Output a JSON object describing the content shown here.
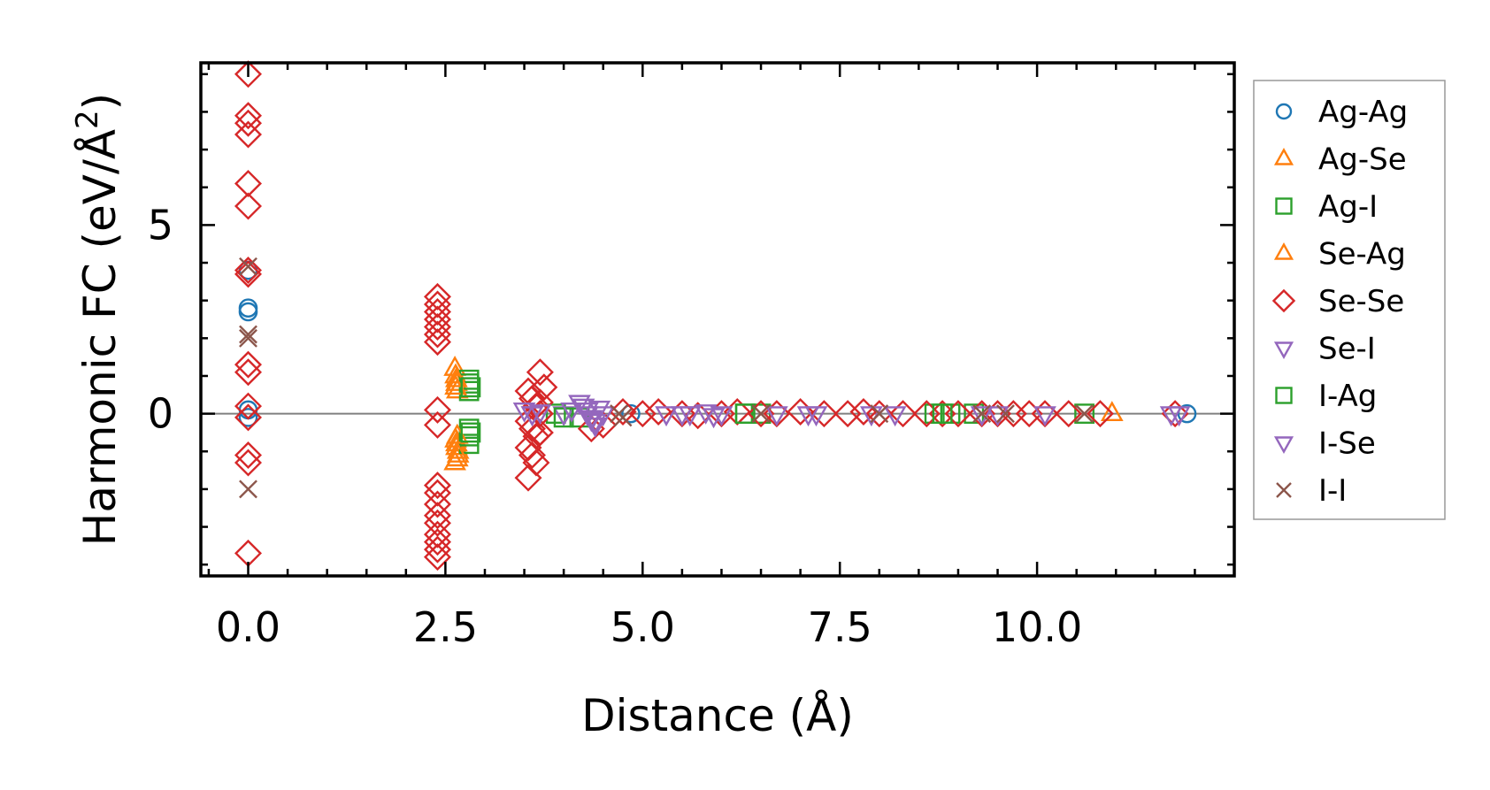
{
  "chart_data": {
    "type": "scatter",
    "title": "",
    "xlabel": "Distance (Å)",
    "ylabel_main": "Harmonic FC (eV/Å",
    "ylabel_sup": "2",
    "ylabel_end": ")",
    "xlim": [
      -0.6,
      12.5
    ],
    "ylim": [
      -4.3,
      9.3
    ],
    "xticks": [
      0.0,
      2.5,
      5.0,
      7.5,
      10.0
    ],
    "xtick_labels": [
      "0.0",
      "2.5",
      "5.0",
      "7.5",
      "10.0"
    ],
    "yticks": [
      0,
      5
    ],
    "ytick_labels": [
      "0",
      "5"
    ],
    "x_minor_step": 0.5,
    "y_minor_step": 1,
    "zero_line": true,
    "legend_position": "outside-right",
    "series": [
      {
        "name": "Ag-Ag",
        "marker": "circle",
        "color": "#1f77b4",
        "x": [
          0,
          0,
          0,
          0,
          0,
          4.85,
          11.9
        ],
        "y": [
          3.8,
          2.8,
          2.7,
          0.1,
          -0.1,
          0.0,
          0.0
        ]
      },
      {
        "name": "Ag-Se",
        "marker": "triangle-up",
        "color": "#ff7f0e",
        "x": [
          2.62,
          2.63,
          2.64,
          2.65,
          2.63,
          2.64,
          2.66,
          2.65,
          2.62,
          2.64,
          10.95
        ],
        "y": [
          1.2,
          1.0,
          0.8,
          0.6,
          -0.7,
          -0.9,
          -1.0,
          -1.2,
          -1.3,
          -0.8,
          0.0
        ]
      },
      {
        "name": "Ag-I",
        "marker": "square",
        "color": "#2ca02c",
        "x": [
          2.8,
          2.8,
          2.8,
          2.8,
          2.8,
          2.8,
          3.9,
          4.2,
          6.3,
          6.5,
          8.7,
          8.9,
          9.2,
          10.6
        ],
        "y": [
          0.9,
          0.8,
          0.6,
          -0.4,
          -0.6,
          -0.8,
          0.0,
          -0.1,
          0.0,
          0.0,
          0.0,
          0.0,
          0.0,
          0.0
        ]
      },
      {
        "name": "Se-Ag",
        "marker": "triangle-up",
        "color": "#ff7f0e",
        "x": [
          2.64,
          2.65,
          2.66,
          2.63
        ],
        "y": [
          0.9,
          -0.6,
          -1.1,
          0.7
        ]
      },
      {
        "name": "Se-Se",
        "marker": "diamond",
        "color": "#d62728",
        "x": [
          0,
          0,
          0,
          0,
          0,
          0,
          0,
          0,
          0,
          0,
          0,
          0,
          0,
          0,
          0,
          2.4,
          2.4,
          2.4,
          2.4,
          2.4,
          2.4,
          2.4,
          2.4,
          2.4,
          2.4,
          2.4,
          2.4,
          2.4,
          2.4,
          2.4,
          2.4,
          2.4,
          2.4,
          3.55,
          3.6,
          3.65,
          3.7,
          3.55,
          3.6,
          3.65,
          3.7,
          3.55,
          3.6,
          3.65,
          3.7,
          3.75,
          3.55,
          3.7,
          4.35,
          4.5,
          4.75,
          5.0,
          5.2,
          5.5,
          5.7,
          6.0,
          6.2,
          6.5,
          6.7,
          7.0,
          7.3,
          7.6,
          7.8,
          8.0,
          8.3,
          8.6,
          8.8,
          9.0,
          9.3,
          9.5,
          9.7,
          9.9,
          10.1,
          10.4,
          10.8,
          11.75
        ],
        "y": [
          9.0,
          7.9,
          7.7,
          7.4,
          6.1,
          5.5,
          3.7,
          1.3,
          1.1,
          0.2,
          -0.1,
          -1.1,
          -1.3,
          -3.7,
          3.8,
          3.1,
          2.9,
          2.7,
          2.5,
          2.3,
          2.1,
          1.9,
          0.1,
          -0.3,
          -1.9,
          -2.1,
          -2.4,
          -2.7,
          -2.9,
          -3.2,
          -3.4,
          -3.6,
          -3.8,
          0.6,
          0.4,
          0.2,
          0.0,
          -0.2,
          -0.4,
          -0.6,
          1.1,
          -0.9,
          -1.1,
          -1.3,
          -0.5,
          0.7,
          -1.7,
          0.3,
          -0.4,
          -0.3,
          0.05,
          0.0,
          0.05,
          0.0,
          -0.05,
          0.0,
          0.05,
          0.0,
          0.0,
          0.05,
          0.0,
          0.0,
          0.05,
          0.0,
          0.0,
          0.0,
          0.0,
          0.0,
          0.0,
          0.0,
          0.0,
          0.0,
          0.0,
          0.0,
          0.0,
          0.0
        ]
      },
      {
        "name": "Se-I",
        "marker": "triangle-down",
        "color": "#9467bd",
        "x": [
          3.5,
          3.6,
          3.7,
          4.0,
          4.2,
          4.25,
          4.3,
          4.35,
          4.4,
          4.5,
          5.3,
          5.6,
          5.9,
          6.7,
          7.1,
          8.2,
          9.5,
          11.7
        ],
        "y": [
          0.1,
          0.0,
          0.05,
          0.0,
          0.3,
          0.2,
          0.1,
          -0.1,
          -0.2,
          0.0,
          0.0,
          0.0,
          -0.05,
          0.0,
          0.0,
          0.0,
          0.0,
          0.0
        ]
      },
      {
        "name": "I-Ag",
        "marker": "square",
        "color": "#2ca02c",
        "x": [
          2.82,
          2.82,
          4.0,
          6.3,
          8.8
        ],
        "y": [
          0.7,
          -0.5,
          -0.1,
          0.0,
          0.0
        ]
      },
      {
        "name": "I-Se",
        "marker": "triangle-down",
        "color": "#9467bd",
        "x": [
          3.6,
          4.1,
          4.25,
          4.3,
          4.35,
          4.4,
          4.45,
          5.5,
          5.8,
          6.0,
          7.2,
          7.9,
          9.3,
          10.1,
          11.8
        ],
        "y": [
          0.0,
          0.1,
          0.2,
          0.0,
          -0.15,
          -0.3,
          0.15,
          0.0,
          0.05,
          0.0,
          0.0,
          0.0,
          0.0,
          0.0,
          0.0
        ]
      },
      {
        "name": "I-I",
        "marker": "x",
        "color": "#8c564b",
        "x": [
          0,
          0,
          0,
          0,
          4.7,
          4.75,
          6.5,
          8.0,
          9.3,
          9.6,
          10.6
        ],
        "y": [
          3.9,
          2.1,
          2.0,
          -2.0,
          0.0,
          -0.1,
          0.0,
          0.0,
          0.0,
          0.0,
          0.0
        ]
      }
    ]
  }
}
